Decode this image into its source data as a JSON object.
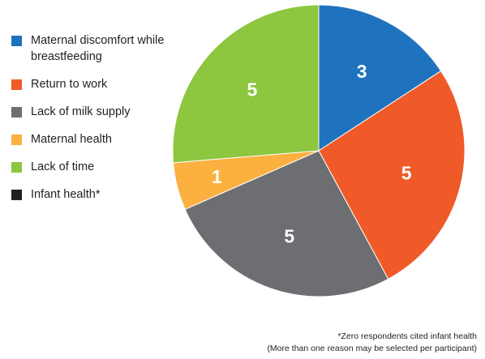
{
  "chart_data": {
    "type": "pie",
    "title": "",
    "slices": [
      {
        "label": "Maternal discomfort while breastfeeding",
        "value": 3,
        "color": "#1f73be",
        "data_label": "3"
      },
      {
        "label": "Return to work",
        "value": 5,
        "color": "#f05a28",
        "data_label": "5"
      },
      {
        "label": "Lack of milk supply",
        "value": 5,
        "color": "#6d6e71",
        "data_label": "5"
      },
      {
        "label": "Maternal health",
        "value": 1,
        "color": "#fbb040",
        "data_label": "1"
      },
      {
        "label": "Lack of time",
        "value": 5,
        "color": "#8dc63f",
        "data_label": "5"
      },
      {
        "label": "Infant health*",
        "value": 0,
        "color": "#231f20",
        "data_label": ""
      }
    ],
    "legend_placement": "left",
    "start_angle_deg": 90,
    "direction": "clockwise"
  },
  "legend": {
    "items": [
      {
        "label": "Maternal discomfort while breastfeeding",
        "color": "#1f73be"
      },
      {
        "label": "Return to work",
        "color": "#f05a28"
      },
      {
        "label": "Lack of milk supply",
        "color": "#6d6e71"
      },
      {
        "label": "Maternal health",
        "color": "#fbb040"
      },
      {
        "label": "Lack of time",
        "color": "#8dc63f"
      },
      {
        "label": "Infant health*",
        "color": "#231f20"
      }
    ]
  },
  "footnotes": {
    "line1": "*Zero respondents cited infant health",
    "line2": "(More than one reason may be selected per participant)"
  }
}
